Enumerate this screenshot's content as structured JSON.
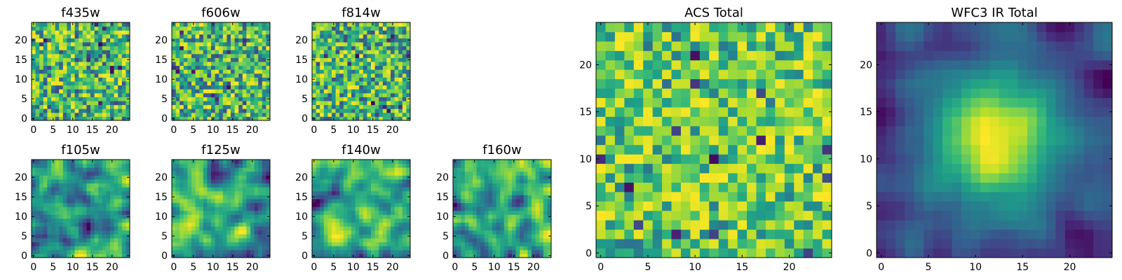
{
  "figure": {
    "background": "#ffffff",
    "colormap": "viridis"
  },
  "chart_data": [
    {
      "id": "f435w",
      "type": "heatmap",
      "title": "f435w",
      "grid_size": 25,
      "pattern": "noise",
      "seed": 11,
      "xlim": [
        0,
        24
      ],
      "ylim": [
        0,
        24
      ],
      "xticks": [
        "0",
        "5",
        "10",
        "15",
        "20"
      ],
      "yticks": [
        "0",
        "5",
        "10",
        "15",
        "20"
      ]
    },
    {
      "id": "f606w",
      "type": "heatmap",
      "title": "f606w",
      "grid_size": 25,
      "pattern": "noise",
      "seed": 23,
      "xlim": [
        0,
        24
      ],
      "ylim": [
        0,
        24
      ],
      "xticks": [
        "0",
        "5",
        "10",
        "15",
        "20"
      ],
      "yticks": [
        "0",
        "5",
        "10",
        "15",
        "20"
      ]
    },
    {
      "id": "f814w",
      "type": "heatmap",
      "title": "f814w",
      "grid_size": 25,
      "pattern": "noise",
      "seed": 37,
      "xlim": [
        0,
        24
      ],
      "ylim": [
        0,
        24
      ],
      "xticks": [
        "0",
        "5",
        "10",
        "15",
        "20"
      ],
      "yticks": [
        "0",
        "5",
        "10",
        "15",
        "20"
      ]
    },
    {
      "id": "f105w",
      "type": "heatmap",
      "title": "f105w",
      "grid_size": 25,
      "pattern": "smooth",
      "seed": 41,
      "xlim": [
        0,
        24
      ],
      "ylim": [
        0,
        24
      ],
      "xticks": [
        "0",
        "5",
        "10",
        "15",
        "20"
      ],
      "yticks": [
        "0",
        "5",
        "10",
        "15",
        "20"
      ]
    },
    {
      "id": "f125w",
      "type": "heatmap",
      "title": "f125w",
      "grid_size": 25,
      "pattern": "smooth",
      "seed": 53,
      "xlim": [
        0,
        24
      ],
      "ylim": [
        0,
        24
      ],
      "xticks": [
        "0",
        "5",
        "10",
        "15",
        "20"
      ],
      "yticks": [
        "0",
        "5",
        "10",
        "15",
        "20"
      ]
    },
    {
      "id": "f140w",
      "type": "heatmap",
      "title": "f140w",
      "grid_size": 25,
      "pattern": "smooth",
      "seed": 67,
      "xlim": [
        0,
        24
      ],
      "ylim": [
        0,
        24
      ],
      "xticks": [
        "0",
        "5",
        "10",
        "15",
        "20"
      ],
      "yticks": [
        "0",
        "5",
        "10",
        "15",
        "20"
      ]
    },
    {
      "id": "f160w",
      "type": "heatmap",
      "title": "f160w",
      "grid_size": 25,
      "pattern": "smooth",
      "seed": 79,
      "xlim": [
        0,
        24
      ],
      "ylim": [
        0,
        24
      ],
      "xticks": [
        "0",
        "5",
        "10",
        "15",
        "20"
      ],
      "yticks": [
        "0",
        "5",
        "10",
        "15",
        "20"
      ]
    },
    {
      "id": "acs-total",
      "type": "heatmap",
      "title": "ACS Total",
      "grid_size": 25,
      "pattern": "noise-bright",
      "seed": 97,
      "xlim": [
        0,
        24
      ],
      "ylim": [
        0,
        24
      ],
      "xticks": [
        "0",
        "5",
        "10",
        "15",
        "20"
      ],
      "yticks": [
        "0",
        "5",
        "10",
        "15",
        "20"
      ]
    },
    {
      "id": "wfc3-ir-total",
      "type": "heatmap",
      "title": "WFC3 IR Total",
      "grid_size": 25,
      "pattern": "central-peak",
      "seed": 113,
      "xlim": [
        0,
        24
      ],
      "ylim": [
        0,
        24
      ],
      "xticks": [
        "0",
        "5",
        "10",
        "15",
        "20"
      ],
      "yticks": [
        "0",
        "5",
        "10",
        "15",
        "20"
      ]
    }
  ]
}
